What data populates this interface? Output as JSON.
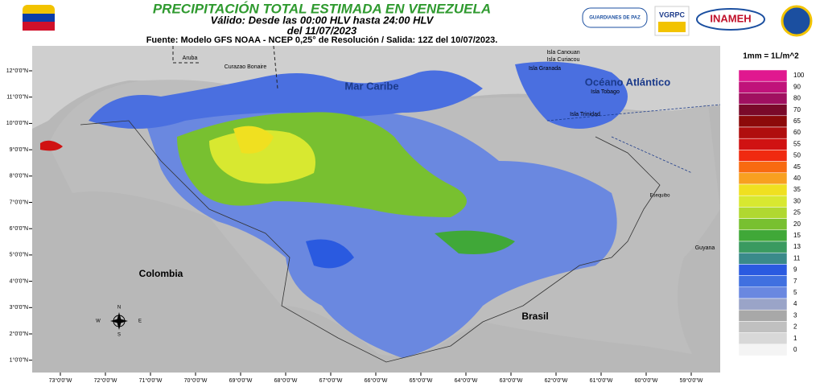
{
  "header": {
    "title": "PRECIPITACIÓN TOTAL ESTIMADA EN VENEZUELA",
    "valid": "Válido: Desde las 00:00 HLV hasta 24:00 HLV",
    "date": "del 11/07/2023",
    "source": "Fuente: Modelo GFS NOAA - NCEP 0,25° de Resolución / Salida: 12Z del 10/07/2023."
  },
  "logos": {
    "guardianes": "GUARDIANES DE PAZ",
    "vgrpc": "VGRPC",
    "inameh": "INAMEH"
  },
  "map": {
    "labels": {
      "mar_caribe": "Mar Caribe",
      "oceano": "Océano Atlántico",
      "colombia": "Colombia",
      "brasil": "Brasil",
      "aruba": "Aruba",
      "curazao": "Curazao Bonaire",
      "canouan": "Isla Canouan",
      "curiacou": "Isla Curiacou",
      "granada": "Isla Granada",
      "tobago": "Isla Tobago",
      "trinidad": "Isla Trinidad",
      "esequibo": "Esequibo",
      "guyana": "Guyana"
    },
    "compass": {
      "n": "N",
      "s": "S",
      "e": "E",
      "w": "W"
    },
    "lat_ticks": [
      "12°0'0\"N",
      "11°0'0\"N",
      "10°0'0\"N",
      "9°0'0\"N",
      "8°0'0\"N",
      "7°0'0\"N",
      "6°0'0\"N",
      "5°0'0\"N",
      "4°0'0\"N",
      "3°0'0\"N",
      "2°0'0\"N",
      "1°0'0\"N"
    ],
    "lon_ticks": [
      "73°0'0\"W",
      "72°0'0\"W",
      "71°0'0\"W",
      "70°0'0\"W",
      "69°0'0\"W",
      "68°0'0\"W",
      "67°0'0\"W",
      "66°0'0\"W",
      "65°0'0\"W",
      "64°0'0\"W",
      "63°0'0\"W",
      "62°0'0\"W",
      "61°0'0\"W",
      "60°0'0\"W",
      "59°0'0\"W"
    ]
  },
  "legend": {
    "unit": "1mm = 1L/m^2",
    "levels": [
      {
        "value": 100,
        "color": "#e0188f"
      },
      {
        "value": 90,
        "color": "#c0127a"
      },
      {
        "value": 80,
        "color": "#a01060"
      },
      {
        "value": 70,
        "color": "#7a0a2a"
      },
      {
        "value": 65,
        "color": "#8c0a0a"
      },
      {
        "value": 60,
        "color": "#b00e0e"
      },
      {
        "value": 55,
        "color": "#d01212"
      },
      {
        "value": 50,
        "color": "#f02a10"
      },
      {
        "value": 45,
        "color": "#f86a10"
      },
      {
        "value": 40,
        "color": "#f8a020"
      },
      {
        "value": 35,
        "color": "#f0e020"
      },
      {
        "value": 30,
        "color": "#d8e830"
      },
      {
        "value": 25,
        "color": "#b0d830"
      },
      {
        "value": 20,
        "color": "#78c030"
      },
      {
        "value": 15,
        "color": "#40a838"
      },
      {
        "value": 13,
        "color": "#3a9a60"
      },
      {
        "value": 11,
        "color": "#3a8a8a"
      },
      {
        "value": 9,
        "color": "#2a5ae0"
      },
      {
        "value": 7,
        "color": "#4070e0"
      },
      {
        "value": 5,
        "color": "#6a88e0"
      },
      {
        "value": 4,
        "color": "#9aa4c8"
      },
      {
        "value": 3,
        "color": "#a8a8a8"
      },
      {
        "value": 2,
        "color": "#c0c0c0"
      },
      {
        "value": 1,
        "color": "#d8d8d8"
      },
      {
        "value": 0,
        "color": "#f4f4f4"
      }
    ]
  }
}
